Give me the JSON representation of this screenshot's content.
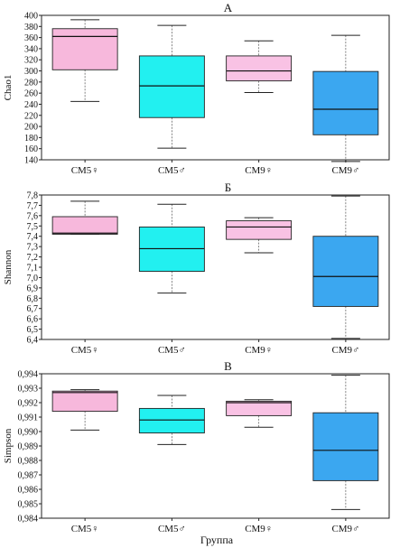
{
  "colors": {
    "CM5_female": "#f7b8dc",
    "CM5_male": "#22f0f0",
    "CM9_female": "#f9c2e4",
    "CM9_male": "#3ba7f0"
  },
  "xlabel": "Группа",
  "chart_data": [
    {
      "type": "box",
      "title": "А",
      "ylabel": "Chao1",
      "ylim": [
        140,
        400
      ],
      "yticks": [
        "140",
        "160",
        "180",
        "200",
        "220",
        "240",
        "260",
        "280",
        "300",
        "320",
        "340",
        "360",
        "380",
        "400"
      ],
      "categories": [
        "CM5♀",
        "CM5♂",
        "CM9♀",
        "CM9♂"
      ],
      "boxes": [
        {
          "min": 245,
          "q1": 302,
          "median": 362,
          "q3": 376,
          "max": 392
        },
        {
          "min": 161,
          "q1": 216,
          "median": 273,
          "q3": 327,
          "max": 382
        },
        {
          "min": 261,
          "q1": 282,
          "median": 300,
          "q3": 327,
          "max": 354
        },
        {
          "min": 137,
          "q1": 185,
          "median": 231,
          "q3": 299,
          "max": 364
        }
      ]
    },
    {
      "type": "box",
      "title": "Б",
      "ylabel": "Shannon",
      "ylim": [
        6.4,
        7.8
      ],
      "yticks": [
        "6,4",
        "6,5",
        "6,6",
        "6,7",
        "6,8",
        "6,9",
        "7,0",
        "7,1",
        "7,2",
        "7,3",
        "7,4",
        "7,5",
        "7,6",
        "7,7",
        "7,8"
      ],
      "categories": [
        "CM5♀",
        "CM5♂",
        "CM9♀",
        "CM9♂"
      ],
      "boxes": [
        {
          "min": 7.42,
          "q1": 7.42,
          "median": 7.43,
          "q3": 7.59,
          "max": 7.74
        },
        {
          "min": 6.85,
          "q1": 7.06,
          "median": 7.28,
          "q3": 7.49,
          "max": 7.71
        },
        {
          "min": 7.24,
          "q1": 7.37,
          "median": 7.49,
          "q3": 7.55,
          "max": 7.58
        },
        {
          "min": 6.41,
          "q1": 6.72,
          "median": 7.01,
          "q3": 7.4,
          "max": 7.79
        }
      ]
    },
    {
      "type": "box",
      "title": "В",
      "ylabel": "Simpson",
      "ylim": [
        0.984,
        0.994
      ],
      "yticks": [
        "0,984",
        "0,985",
        "0,986",
        "0,987",
        "0,988",
        "0,989",
        "0,990",
        "0,991",
        "0,992",
        "0,993",
        "0,994"
      ],
      "categories": [
        "CM5♀",
        "CM5♂",
        "CM9♀",
        "CM9♂"
      ],
      "boxes": [
        {
          "min": 0.9901,
          "q1": 0.9914,
          "median": 0.9927,
          "q3": 0.9928,
          "max": 0.9929
        },
        {
          "min": 0.9891,
          "q1": 0.9899,
          "median": 0.9908,
          "q3": 0.9916,
          "max": 0.9925
        },
        {
          "min": 0.9903,
          "q1": 0.9911,
          "median": 0.992,
          "q3": 0.9921,
          "max": 0.9922
        },
        {
          "min": 0.9846,
          "q1": 0.9866,
          "median": 0.9887,
          "q3": 0.9913,
          "max": 0.9939
        }
      ]
    }
  ]
}
